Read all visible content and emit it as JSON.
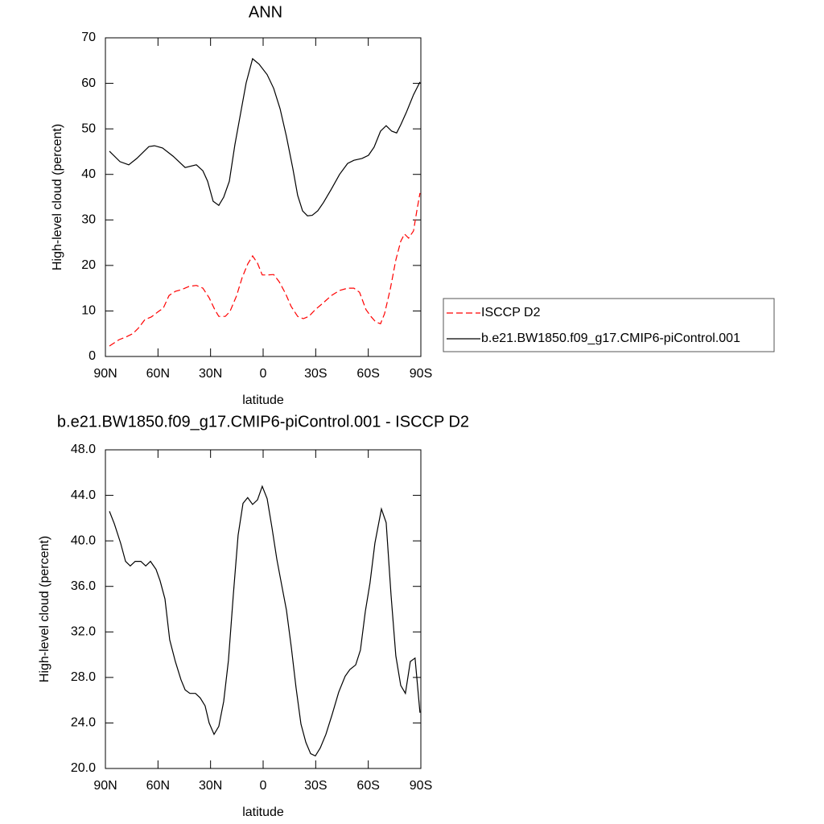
{
  "chart_data": [
    {
      "type": "line",
      "title": "ANN",
      "x_label": "latitude",
      "y_label": "High-level cloud (percent)",
      "xlim": [
        90,
        -90
      ],
      "ylim": [
        0,
        70
      ],
      "xticks": [
        {
          "value": 90,
          "label": "90N"
        },
        {
          "value": 60,
          "label": "60N"
        },
        {
          "value": 30,
          "label": "30N"
        },
        0,
        {
          "value": -30,
          "label": "30S"
        },
        {
          "value": -60,
          "label": "60S"
        },
        {
          "value": -90,
          "label": "90S"
        }
      ],
      "yticks": [
        0,
        10,
        20,
        30,
        40,
        50,
        60,
        70
      ],
      "series": [
        {
          "name": "ISCCP D2",
          "color": "#ff0000",
          "dashed": true,
          "x": [
            87.7,
            82.2,
            77.6,
            74.4,
            71.2,
            67.5,
            63.8,
            59.7,
            57,
            53.7,
            50.1,
            46.4,
            42.3,
            38.1,
            34.4,
            30.8,
            27.6,
            25.3,
            21.6,
            18.9,
            15.2,
            12,
            8.8,
            6,
            3.2,
            0.5,
            -2.7,
            -6,
            -9.2,
            -12.8,
            -16,
            -19.7,
            -22.9,
            -26.1,
            -29.8,
            -34.4,
            -39,
            -43.6,
            -48.2,
            -51.8,
            -55,
            -58.7,
            -61.5,
            -64.2,
            -67,
            -69.3,
            -72.5,
            -75.7,
            -78.5,
            -80.7,
            -83,
            -85.8,
            -87.7,
            -89.5
          ],
          "values": [
            2.3,
            3.7,
            4.4,
            5,
            6.2,
            8.1,
            8.7,
            9.9,
            10.6,
            13.4,
            14.3,
            14.7,
            15.4,
            15.6,
            15,
            12.9,
            10.3,
            8.8,
            8.8,
            9.9,
            13.3,
            17.3,
            20.3,
            22.1,
            20.5,
            17.9,
            17.9,
            18,
            16.4,
            13.8,
            11,
            8.8,
            8.3,
            8.8,
            10.3,
            11.8,
            13.4,
            14.5,
            15,
            15,
            14.1,
            10.3,
            8.8,
            7.6,
            7.2,
            9.4,
            14.7,
            21.2,
            25.3,
            26.9,
            26,
            27.6,
            32,
            35.9
          ]
        },
        {
          "name": "b.e21.BW1850.f09_g17.CMIP6-piControl.001",
          "color": "#000000",
          "dashed": false,
          "x": [
            87.7,
            81.7,
            76.7,
            72.1,
            65.2,
            62,
            57.4,
            51.4,
            44.5,
            38.1,
            34.4,
            31.7,
            28.5,
            25.3,
            22.5,
            19.3,
            16.1,
            12.4,
            9.7,
            6,
            2.3,
            -2.3,
            -6,
            -9.7,
            -13.3,
            -17,
            -19.7,
            -22.5,
            -25.3,
            -28,
            -31.2,
            -34.4,
            -39,
            -43.6,
            -48.2,
            -51.8,
            -56.4,
            -60.1,
            -63.3,
            -67,
            -70.2,
            -73.4,
            -76.2,
            -78.5,
            -81.7,
            -85.8,
            -89.5
          ],
          "values": [
            45.1,
            42.8,
            42.1,
            43.5,
            46.1,
            46.3,
            45.8,
            44,
            41.5,
            42.1,
            40.8,
            38.5,
            34.1,
            33.2,
            35,
            38.5,
            46.5,
            54.4,
            60.1,
            65.4,
            64.2,
            61.9,
            58.9,
            54.4,
            48.3,
            41.2,
            35.4,
            32,
            30.9,
            31,
            32,
            33.8,
            36.8,
            40,
            42.4,
            43.1,
            43.5,
            44.2,
            46,
            49.5,
            50.7,
            49.5,
            49.1,
            50.9,
            53.6,
            57.5,
            60.3
          ]
        }
      ]
    },
    {
      "type": "line",
      "title": "b.e21.BW1850.f09_g17.CMIP6-piControl.001 - ISCCP D2",
      "x_label": "latitude",
      "y_label": "High-level cloud (percent)",
      "xlim": [
        90,
        -90
      ],
      "ylim": [
        20,
        48
      ],
      "xticks": [
        {
          "value": 90,
          "label": "90N"
        },
        {
          "value": 60,
          "label": "60N"
        },
        {
          "value": 30,
          "label": "30N"
        },
        0,
        {
          "value": -30,
          "label": "30S"
        },
        {
          "value": -60,
          "label": "60S"
        },
        {
          "value": -90,
          "label": "90S"
        }
      ],
      "yticks": [
        {
          "value": 20,
          "label": "20.0"
        },
        {
          "value": 24,
          "label": "24.0"
        },
        {
          "value": 28,
          "label": "28.0"
        },
        {
          "value": 32,
          "label": "32.0"
        },
        {
          "value": 36,
          "label": "36.0"
        },
        {
          "value": 40,
          "label": "40.0"
        },
        {
          "value": 44,
          "label": "44.0"
        },
        {
          "value": 48,
          "label": "48.0"
        }
      ],
      "series": [
        {
          "color": "#000000",
          "dashed": false,
          "x": [
            87.7,
            84.9,
            81.3,
            78.5,
            75.8,
            73,
            69.8,
            67,
            64.3,
            61.1,
            58.8,
            56,
            53.3,
            50.1,
            46.9,
            44.5,
            41.8,
            38.6,
            35.9,
            33.1,
            30.8,
            28,
            25.3,
            22.5,
            19.8,
            17,
            14.3,
            11.5,
            8.8,
            6,
            3.2,
            0.5,
            -2.3,
            -5,
            -7.8,
            -10.6,
            -13.3,
            -16.1,
            -18.8,
            -21.6,
            -24.4,
            -27.1,
            -29.8,
            -32.6,
            -35.8,
            -39.5,
            -43.1,
            -46.8,
            -49.5,
            -52.8,
            -55.5,
            -58.3,
            -61,
            -63.8,
            -67.5,
            -70.2,
            -73,
            -75.7,
            -78.5,
            -81.2,
            -84,
            -86.7,
            -89.5
          ],
          "values": [
            42.6,
            41.5,
            39.8,
            38.2,
            37.8,
            38.2,
            38.2,
            37.8,
            38.2,
            37.5,
            36.5,
            34.9,
            31.3,
            29.4,
            27.8,
            26.9,
            26.6,
            26.6,
            26.2,
            25.5,
            24,
            23,
            23.7,
            25.9,
            29.5,
            35.3,
            40.5,
            43.3,
            43.8,
            43.2,
            43.6,
            44.8,
            43.7,
            41.2,
            38.4,
            36.1,
            33.9,
            30.6,
            27.1,
            23.9,
            22.3,
            21.3,
            21.1,
            21.8,
            23,
            24.8,
            26.7,
            28.1,
            28.7,
            29.1,
            30.4,
            33.8,
            36.3,
            39.8,
            42.8,
            41.6,
            35.2,
            29.9,
            27.3,
            26.6,
            29.4,
            29.7,
            24.9
          ]
        }
      ]
    }
  ]
}
